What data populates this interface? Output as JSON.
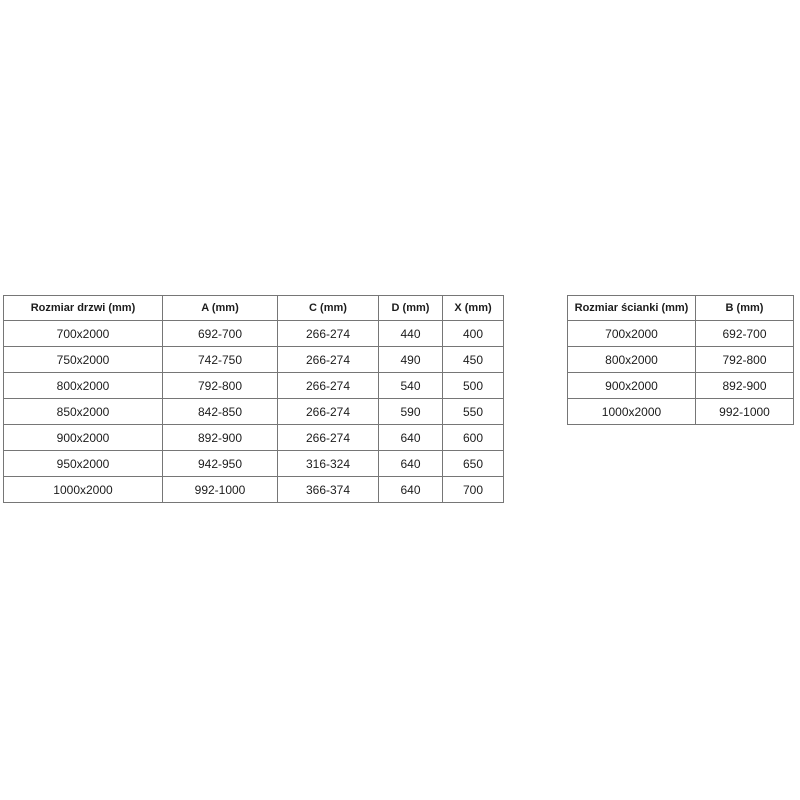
{
  "page": {
    "background_color": "#ffffff",
    "border_color": "#767676",
    "text_color": "#1c1c1c"
  },
  "tables": {
    "doors": {
      "title": "Rozmiar drzwi (mm)",
      "headers": [
        "Rozmiar drzwi (mm)",
        "A (mm)",
        "C (mm)",
        "D (mm)",
        "X (mm)"
      ],
      "rows": [
        [
          "700x2000",
          "692-700",
          "266-274",
          "440",
          "400"
        ],
        [
          "750x2000",
          "742-750",
          "266-274",
          "490",
          "450"
        ],
        [
          "800x2000",
          "792-800",
          "266-274",
          "540",
          "500"
        ],
        [
          "850x2000",
          "842-850",
          "266-274",
          "590",
          "550"
        ],
        [
          "900x2000",
          "892-900",
          "266-274",
          "640",
          "600"
        ],
        [
          "950x2000",
          "942-950",
          "316-324",
          "640",
          "650"
        ],
        [
          "1000x2000",
          "992-1000",
          "366-374",
          "640",
          "700"
        ]
      ]
    },
    "walls": {
      "title": "Rozmiar ścianki (mm)",
      "headers": [
        "Rozmiar ścianki (mm)",
        "B (mm)"
      ],
      "rows": [
        [
          "700x2000",
          "692-700"
        ],
        [
          "800x2000",
          "792-800"
        ],
        [
          "900x2000",
          "892-900"
        ],
        [
          "1000x2000",
          "992-1000"
        ]
      ]
    }
  }
}
